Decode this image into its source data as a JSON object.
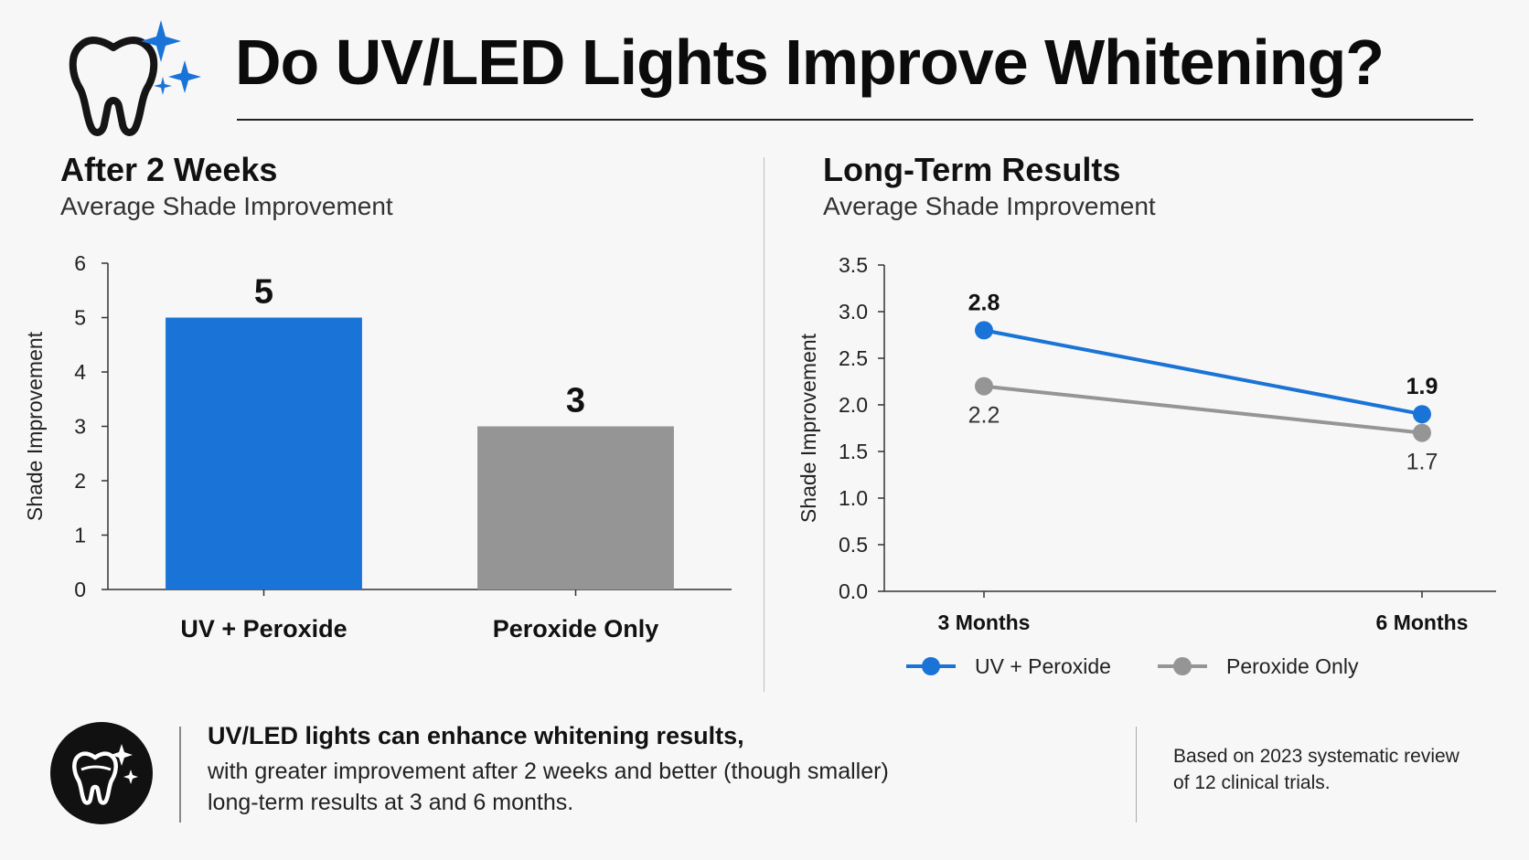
{
  "header": {
    "title": "Do UV/LED Lights Improve Whitening?"
  },
  "colors": {
    "uv": "#1a73d6",
    "peroxide": "#959595",
    "text": "#111111"
  },
  "icons": {
    "logo": "tooth-sparkle-icon",
    "footer": "tooth-sparkle-badge-icon"
  },
  "chart_data": [
    {
      "type": "bar",
      "title": "After 2 Weeks",
      "subtitle": "Average Shade Improvement",
      "ylabel": "Shade Improvement",
      "ylim": [
        0,
        6
      ],
      "yticks": [
        "0",
        "1",
        "2",
        "3",
        "4",
        "5",
        "6"
      ],
      "categories": [
        "UV + Peroxide",
        "Peroxide Only"
      ],
      "values": [
        5,
        3
      ],
      "value_labels": [
        "5",
        "3"
      ],
      "bar_colors": [
        "#1a73d6",
        "#959595"
      ]
    },
    {
      "type": "line",
      "title": "Long-Term Results",
      "subtitle": "Average Shade Improvement",
      "ylabel": "Shade Improvement",
      "ylim": [
        0,
        3.5
      ],
      "yticks": [
        "0.0",
        "0.5",
        "1.0",
        "1.5",
        "2.0",
        "2.5",
        "3.0",
        "3.5"
      ],
      "x": [
        "3 Months",
        "6 Months"
      ],
      "series": [
        {
          "name": "UV + Peroxide",
          "values": [
            2.8,
            1.9
          ],
          "labels": [
            "2.8",
            "1.9"
          ],
          "color": "#1a73d6"
        },
        {
          "name": "Peroxide Only",
          "values": [
            2.2,
            1.7
          ],
          "labels": [
            "2.2",
            "1.7"
          ],
          "color": "#959595"
        }
      ],
      "legend": "bottom"
    }
  ],
  "footer": {
    "headline": "UV/LED lights can enhance whitening results,",
    "body_lines": [
      "with greater improvement after 2 weeks and better (though smaller)",
      "long-term results at 3 and 6 months."
    ],
    "source_lines": [
      "Based on 2023 systematic review",
      "of 12 clinical trials."
    ]
  }
}
